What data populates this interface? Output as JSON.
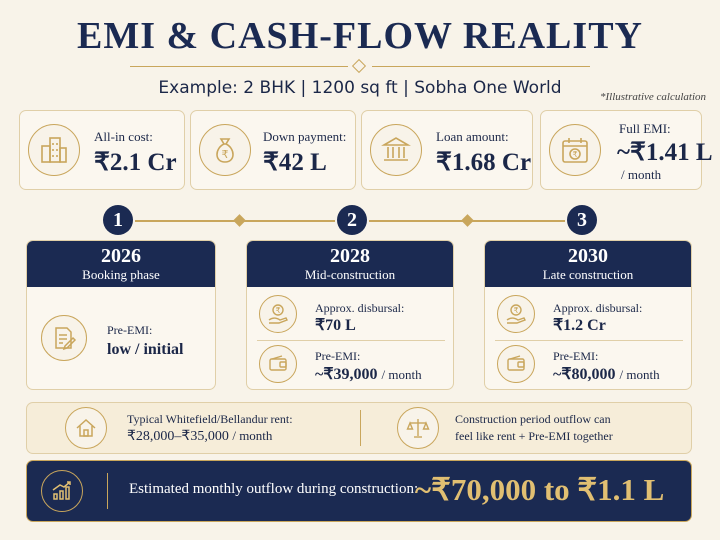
{
  "title": "EMI & CASH-FLOW REALITY",
  "subtitle": "Example: 2 BHK | 1200 sq ft | Sobha One World",
  "note": "*Illustrative calculation",
  "stats": [
    {
      "label": "All-in cost:",
      "value": "₹2.1 Cr",
      "icon": "buildings-icon"
    },
    {
      "label": "Down payment:",
      "value": "₹42 L",
      "icon": "money-bag-icon"
    },
    {
      "label": "Loan amount:",
      "value": "₹1.68 Cr",
      "icon": "bank-icon"
    },
    {
      "label": "Full EMI:",
      "value": "~₹1.41 L",
      "unit": "/ month",
      "icon": "calendar-rupee-icon"
    }
  ],
  "timeline_numbers": [
    "1",
    "2",
    "3"
  ],
  "phases": [
    {
      "year": "2026",
      "name": "Booking phase",
      "rows": [
        {
          "label": "Pre-EMI:",
          "value": "low / initial",
          "icon": "document-pen-icon"
        }
      ]
    },
    {
      "year": "2028",
      "name": "Mid-construction",
      "rows": [
        {
          "label": "Approx. disbursal:",
          "value": "₹70 L",
          "unit": "",
          "icon": "rupee-hand-icon"
        },
        {
          "label": "Pre-EMI:",
          "value": "~₹39,000",
          "unit": "/ month",
          "icon": "wallet-icon"
        }
      ]
    },
    {
      "year": "2030",
      "name": "Late construction",
      "rows": [
        {
          "label": "Approx. disbursal:",
          "value": "₹1.2 Cr",
          "unit": "",
          "icon": "rupee-hand-icon"
        },
        {
          "label": "Pre-EMI:",
          "value": "~₹80,000",
          "unit": "/ month",
          "icon": "wallet-icon"
        }
      ]
    }
  ],
  "rent": {
    "label": "Typical Whitefield/Bellandur rent:",
    "value": "₹28,000–₹35,000",
    "unit": "/ month",
    "icon": "house-icon"
  },
  "outflow_note": {
    "line1": "Construction period outflow can",
    "line2": "feel like rent + Pre-EMI together",
    "icon": "scales-icon"
  },
  "bottom": {
    "label": "Estimated monthly outflow during construction:",
    "value": "~₹70,000 to ₹1.1 L",
    "icon": "growth-chart-icon"
  },
  "colors": {
    "navy": "#1b2a52",
    "gold": "#c9a65c",
    "cream": "#f8f3e9"
  }
}
